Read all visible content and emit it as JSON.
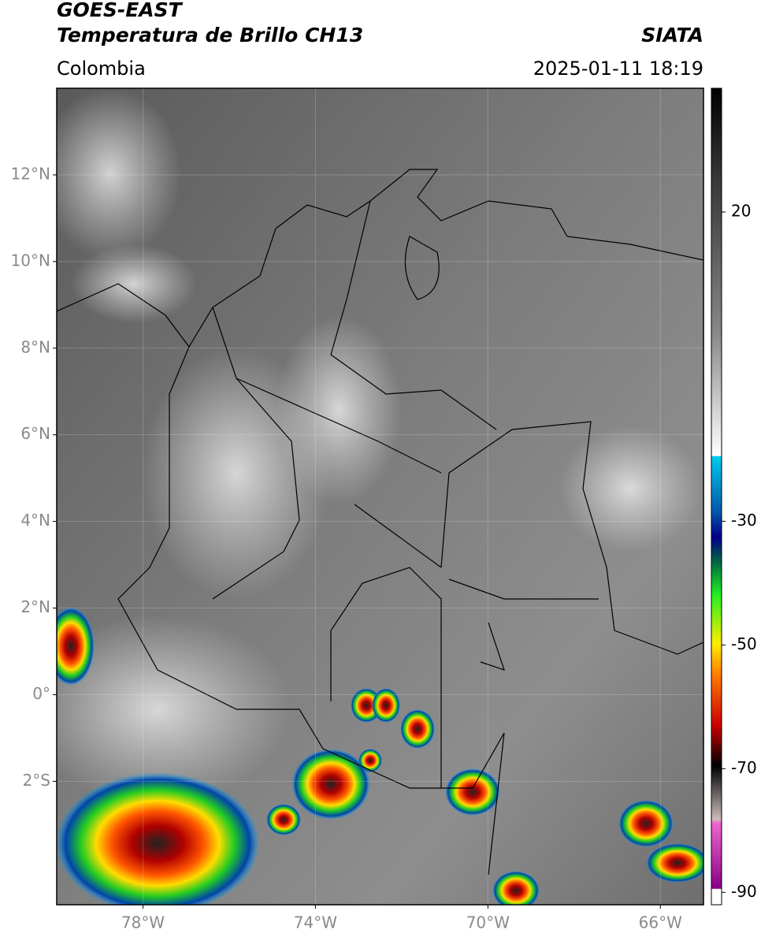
{
  "header": {
    "title": "GOES-EAST",
    "subtitle": "Temperatura de Brillo CH13",
    "source": "SIATA",
    "region": "Colombia",
    "datetime": "2025-01-11 18:19"
  },
  "map": {
    "xlim": [
      -80,
      -65
    ],
    "ylim": [
      -4.85,
      14
    ],
    "xticks": [
      {
        "value": -78,
        "label": "78°W"
      },
      {
        "value": -74,
        "label": "74°W"
      },
      {
        "value": -70,
        "label": "70°W"
      },
      {
        "value": -66,
        "label": "66°W"
      }
    ],
    "yticks": [
      {
        "value": 12,
        "label": "12°N"
      },
      {
        "value": 10,
        "label": "10°N"
      },
      {
        "value": 8,
        "label": "8°N"
      },
      {
        "value": 6,
        "label": "6°N"
      },
      {
        "value": 4,
        "label": "4°N"
      },
      {
        "value": 2,
        "label": "2°N"
      },
      {
        "value": 0,
        "label": "0°"
      },
      {
        "value": -2,
        "label": "2°S"
      }
    ],
    "grid": true
  },
  "colorbar": {
    "lim": [
      -92,
      40
    ],
    "ticks": [
      20,
      -30,
      -50,
      -70,
      -90
    ]
  }
}
